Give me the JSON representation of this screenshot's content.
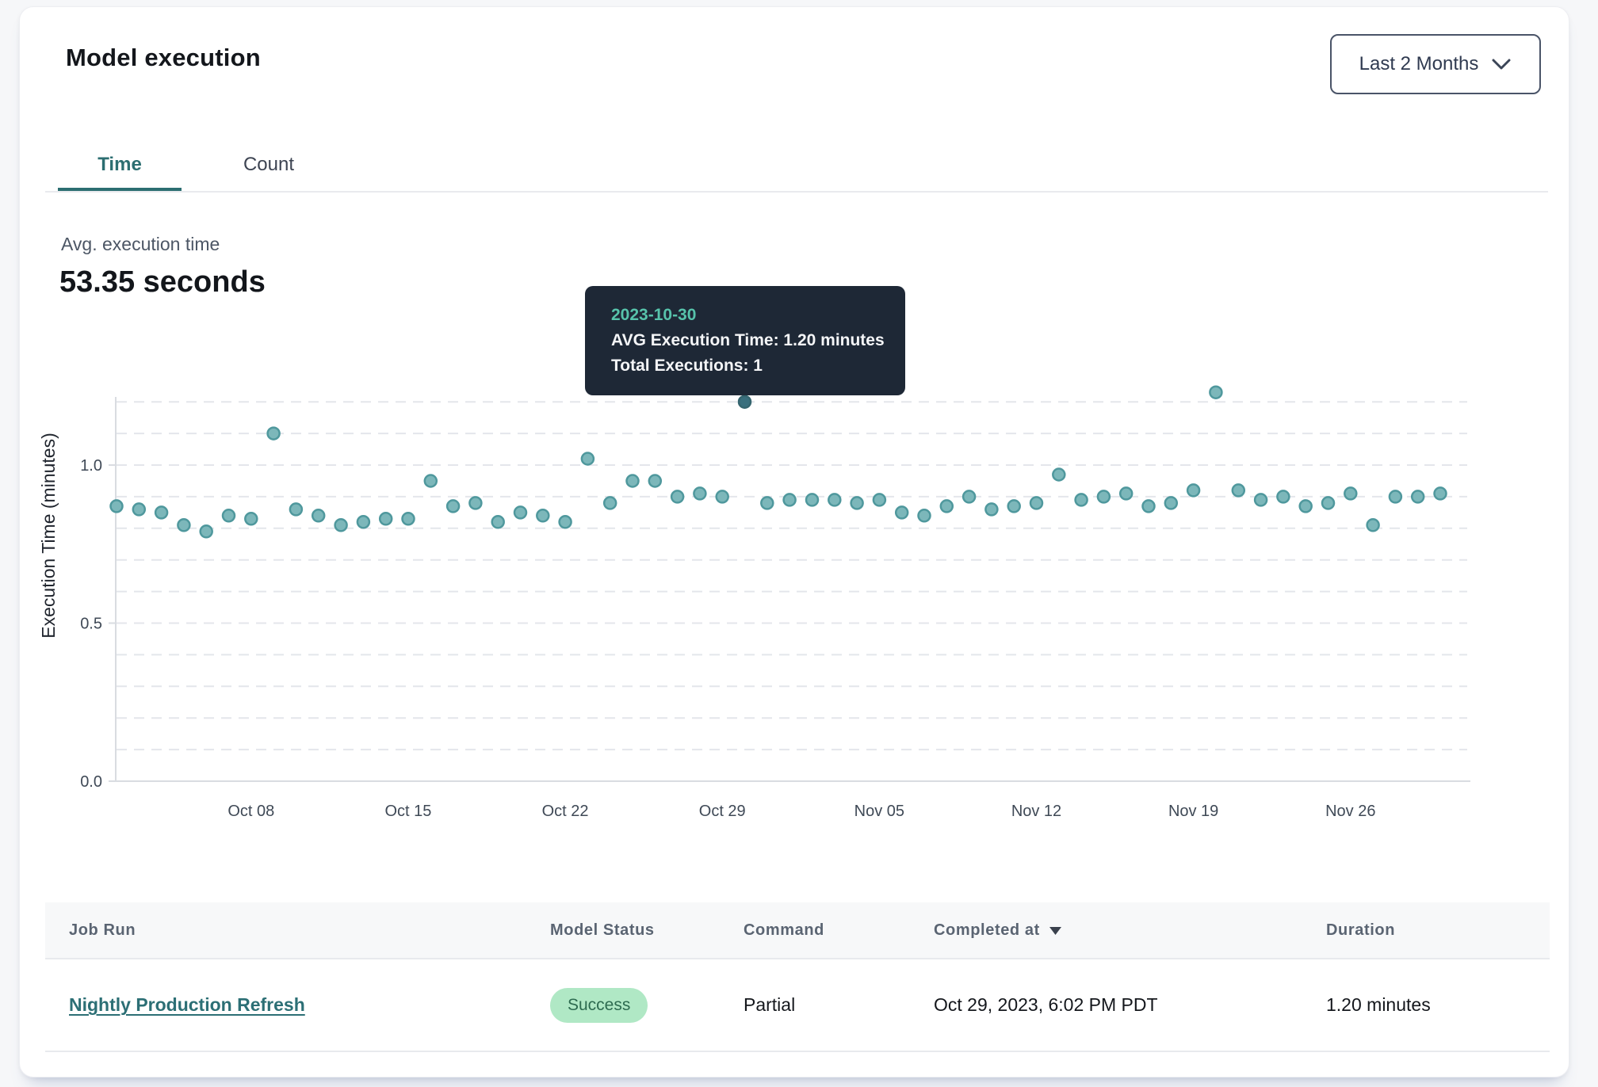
{
  "header": {
    "title": "Model execution",
    "range_selector": {
      "label": "Last 2 Months"
    }
  },
  "tabs": [
    {
      "label": "Time",
      "active": true
    },
    {
      "label": "Count",
      "active": false
    }
  ],
  "summary": {
    "label": "Avg. execution time",
    "value": "53.35 seconds"
  },
  "tooltip": {
    "date": "2023-10-30",
    "avg_line": "AVG Execution Time: 1.20 minutes",
    "total_line": "Total Executions: 1"
  },
  "chart_data": {
    "type": "scatter",
    "title": "",
    "xlabel": "",
    "ylabel": "Execution Time (minutes)",
    "ylim": [
      0,
      1.25
    ],
    "yticks": [
      0,
      0.5,
      1.0
    ],
    "ytick_labels": [
      "0.0",
      "0.5",
      "1.0"
    ],
    "gridline_step": 0.1,
    "grid": "horizontal-dashed",
    "legend": "none",
    "x_ticks": [
      {
        "label": "Oct 08",
        "day_index": 6
      },
      {
        "label": "Oct 15",
        "day_index": 13
      },
      {
        "label": "Oct 22",
        "day_index": 20
      },
      {
        "label": "Oct 29",
        "day_index": 27
      },
      {
        "label": "Nov 05",
        "day_index": 34
      },
      {
        "label": "Nov 12",
        "day_index": 41
      },
      {
        "label": "Nov 19",
        "day_index": 48
      },
      {
        "label": "Nov 26",
        "day_index": 55
      }
    ],
    "highlight": {
      "date": "2023-10-30",
      "value": 1.2
    },
    "points": [
      [
        "2023-10-02",
        0.87
      ],
      [
        "2023-10-03",
        0.86
      ],
      [
        "2023-10-04",
        0.85
      ],
      [
        "2023-10-05",
        0.81
      ],
      [
        "2023-10-06",
        0.79
      ],
      [
        "2023-10-07",
        0.84
      ],
      [
        "2023-10-08",
        0.83
      ],
      [
        "2023-10-09",
        1.1
      ],
      [
        "2023-10-10",
        0.86
      ],
      [
        "2023-10-11",
        0.84
      ],
      [
        "2023-10-12",
        0.81
      ],
      [
        "2023-10-13",
        0.82
      ],
      [
        "2023-10-14",
        0.83
      ],
      [
        "2023-10-15",
        0.83
      ],
      [
        "2023-10-16",
        0.95
      ],
      [
        "2023-10-17",
        0.87
      ],
      [
        "2023-10-18",
        0.88
      ],
      [
        "2023-10-19",
        0.82
      ],
      [
        "2023-10-20",
        0.85
      ],
      [
        "2023-10-21",
        0.84
      ],
      [
        "2023-10-22",
        0.82
      ],
      [
        "2023-10-23",
        1.02
      ],
      [
        "2023-10-24",
        0.88
      ],
      [
        "2023-10-25",
        0.95
      ],
      [
        "2023-10-26",
        0.95
      ],
      [
        "2023-10-27",
        0.9
      ],
      [
        "2023-10-28",
        0.91
      ],
      [
        "2023-10-29",
        0.9
      ],
      [
        "2023-10-30",
        1.2
      ],
      [
        "2023-10-31",
        0.88
      ],
      [
        "2023-11-01",
        0.89
      ],
      [
        "2023-11-02",
        0.89
      ],
      [
        "2023-11-03",
        0.89
      ],
      [
        "2023-11-04",
        0.88
      ],
      [
        "2023-11-05",
        0.89
      ],
      [
        "2023-11-06",
        0.85
      ],
      [
        "2023-11-07",
        0.84
      ],
      [
        "2023-11-08",
        0.87
      ],
      [
        "2023-11-09",
        0.9
      ],
      [
        "2023-11-10",
        0.86
      ],
      [
        "2023-11-11",
        0.87
      ],
      [
        "2023-11-12",
        0.88
      ],
      [
        "2023-11-13",
        0.97
      ],
      [
        "2023-11-14",
        0.89
      ],
      [
        "2023-11-15",
        0.9
      ],
      [
        "2023-11-16",
        0.91
      ],
      [
        "2023-11-17",
        0.87
      ],
      [
        "2023-11-18",
        0.88
      ],
      [
        "2023-11-19",
        0.92
      ],
      [
        "2023-11-20",
        1.23
      ],
      [
        "2023-11-21",
        0.92
      ],
      [
        "2023-11-22",
        0.89
      ],
      [
        "2023-11-23",
        0.9
      ],
      [
        "2023-11-24",
        0.87
      ],
      [
        "2023-11-25",
        0.88
      ],
      [
        "2023-11-26",
        0.91
      ],
      [
        "2023-11-27",
        0.81
      ],
      [
        "2023-11-28",
        0.9
      ],
      [
        "2023-11-29",
        0.9
      ],
      [
        "2023-11-30",
        0.91
      ]
    ]
  },
  "table": {
    "columns": [
      {
        "label": "Job Run"
      },
      {
        "label": "Model Status"
      },
      {
        "label": "Command"
      },
      {
        "label": "Completed at",
        "sort_indicator": "desc"
      },
      {
        "label": "Duration"
      }
    ],
    "rows": [
      {
        "job_run": "Nightly Production Refresh",
        "model_status": "Success",
        "command": "Partial",
        "completed_at": "Oct 29, 2023, 6:02 PM PDT",
        "duration": "1.20 minutes"
      }
    ]
  },
  "colors": {
    "accent_teal": "#2c6e71",
    "point_fill": "#7cb7ba",
    "point_stroke": "#4f989d",
    "highlight_point": "#3a6f7d",
    "tooltip_bg": "#1e2836",
    "tooltip_date": "#57c3ab",
    "badge_bg": "#b0e8c5",
    "badge_text": "#2d6b50",
    "link": "#2c6f75",
    "gridline": "#e4e6eb",
    "axis_line": "#d9dce1"
  }
}
